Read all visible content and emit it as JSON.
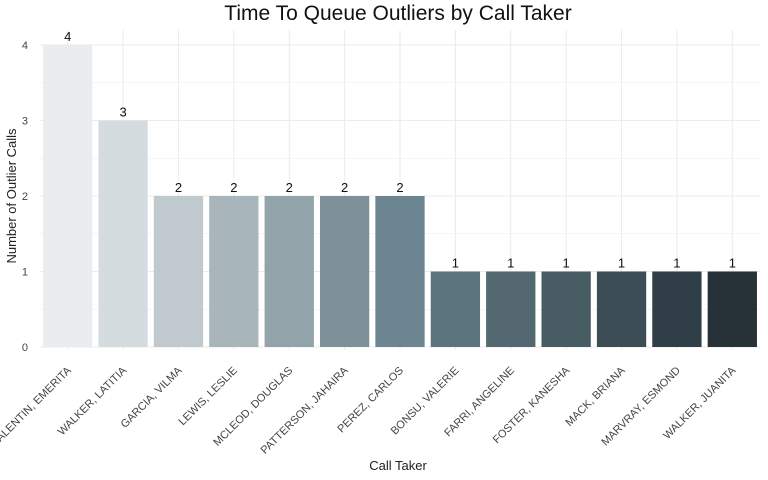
{
  "chart_data": {
    "type": "bar",
    "title": "Time To Queue Outliers by Call Taker",
    "xlabel": "Call Taker",
    "ylabel": "Number of Outlier Calls",
    "ylim": [
      0,
      4.2
    ],
    "yticks": [
      0,
      1,
      2,
      3,
      4
    ],
    "grid": true,
    "legend": "none",
    "categories": [
      "VALENTIN, EMERITA",
      "WALKER, LATITIA",
      "GARCIA, VILMA",
      "LEWIS, LESLIE",
      "MCLEOD, DOUGLAS",
      "PATTERSON, JAHAIRA",
      "PEREZ, CARLOS",
      "BONSU, VALERIE",
      "FARRI, ANGELINE",
      "FOSTER, KANESHA",
      "MACK, BRIANA",
      "MARVRAY, ESMOND",
      "WALKER, JUANITA"
    ],
    "values": [
      4,
      3,
      2,
      2,
      2,
      2,
      2,
      1,
      1,
      1,
      1,
      1,
      1
    ],
    "colors": [
      "#eaedef",
      "#d5dcdf",
      "#bfc9ce",
      "#a8b6bc",
      "#92a3aa",
      "#7e9199",
      "#6c8590",
      "#5c747d",
      "#536870",
      "#485c64",
      "#3c4d56",
      "#303f47",
      "#263238"
    ]
  }
}
